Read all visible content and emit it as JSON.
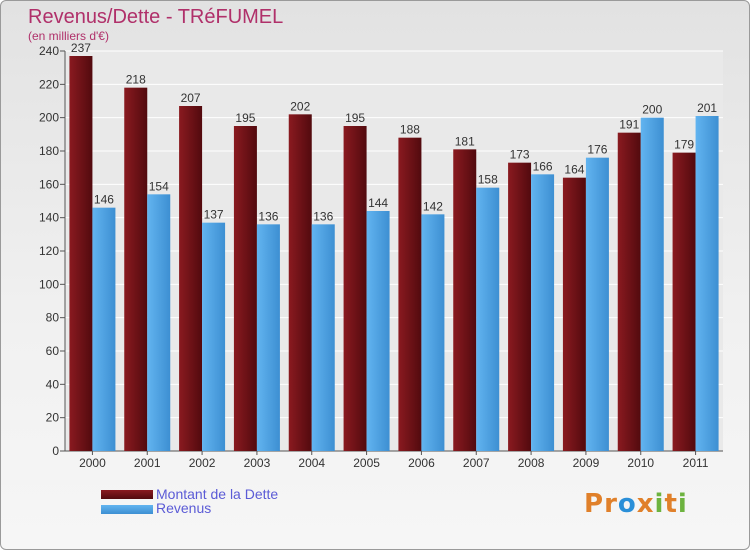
{
  "chart_data": {
    "type": "bar",
    "title": "Revenus/Dette - TRéFUMEL",
    "subtitle": "(en milliers d'€)",
    "categories": [
      "2000",
      "2001",
      "2002",
      "2003",
      "2004",
      "2005",
      "2006",
      "2007",
      "2008",
      "2009",
      "2010",
      "2011"
    ],
    "series": [
      {
        "name": "Montant de la Dette",
        "color": "#6b0f14",
        "values": [
          237,
          218,
          207,
          195,
          202,
          195,
          188,
          181,
          173,
          164,
          191,
          179
        ]
      },
      {
        "name": "Revenus",
        "color": "#4fa3e3",
        "values": [
          146,
          154,
          137,
          136,
          136,
          144,
          142,
          158,
          166,
          176,
          200,
          201
        ]
      }
    ],
    "ylim": [
      0,
      240
    ],
    "yticks": [
      0,
      20,
      40,
      60,
      80,
      100,
      120,
      140,
      160,
      180,
      200,
      220,
      240
    ],
    "grid": true,
    "legend_position": "bottom-left"
  },
  "logo": {
    "letters": [
      {
        "ch": "P",
        "color": "#e0802a"
      },
      {
        "ch": "r",
        "color": "#e0802a"
      },
      {
        "ch": "o",
        "color": "#2a8fd8"
      },
      {
        "ch": "x",
        "color": "#e0802a"
      },
      {
        "ch": "i",
        "color": "#6db33f"
      },
      {
        "ch": "t",
        "color": "#e0802a"
      },
      {
        "ch": "i",
        "color": "#6db33f"
      }
    ]
  }
}
